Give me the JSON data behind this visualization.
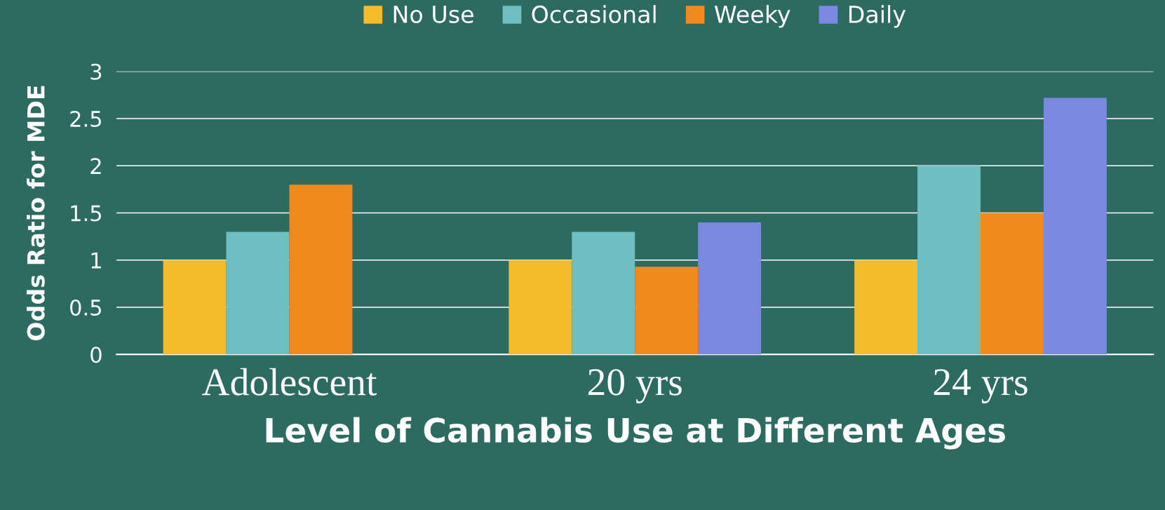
{
  "chart_data": {
    "type": "bar",
    "categories": [
      "Adolescent",
      "20 yrs",
      "24 yrs"
    ],
    "series": [
      {
        "name": "No Use",
        "color": "#f5bb2a",
        "values": [
          1,
          1,
          1
        ]
      },
      {
        "name": "Occasional",
        "color": "#6fbfc2",
        "values": [
          1.3,
          1.3,
          2.0
        ]
      },
      {
        "name": "Weeky",
        "color": "#f08a1c",
        "values": [
          1.8,
          0.93,
          1.5
        ]
      },
      {
        "name": "Daily",
        "color": "#7b88e0",
        "values": [
          null,
          1.4,
          2.72
        ]
      }
    ],
    "xlabel": "Level of Cannabis Use at Different Ages",
    "ylabel": "Odds Ratio for MDE",
    "ylim": [
      0,
      3
    ],
    "yticks": [
      0,
      0.5,
      1,
      1.5,
      2,
      2.5,
      3
    ],
    "grid": "y",
    "legend": "top"
  }
}
